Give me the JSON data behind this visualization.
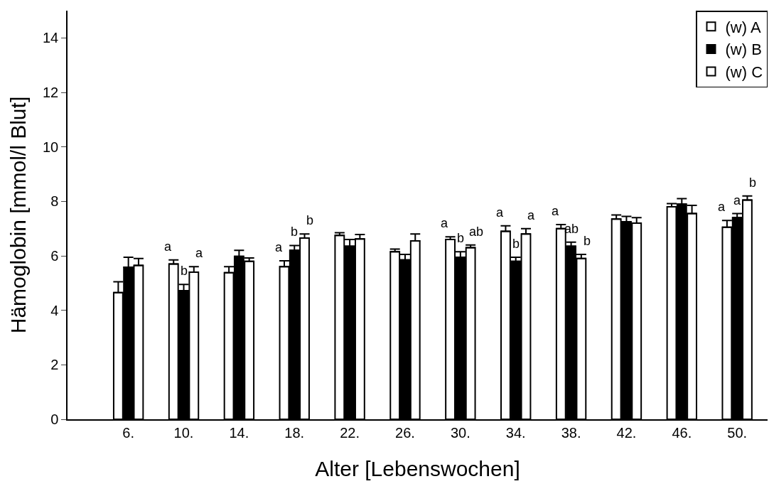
{
  "chart_data": {
    "type": "bar",
    "xlabel": "Alter [Lebenswochen]",
    "ylabel": "Hämoglobin [mmol/l Blut]",
    "categories": [
      "6.",
      "10.",
      "14.",
      "18.",
      "22.",
      "26.",
      "30.",
      "34.",
      "38.",
      "42.",
      "46.",
      "50."
    ],
    "series": [
      {
        "name": "(w) A",
        "color": "#ffffff",
        "values": [
          4.65,
          5.7,
          5.38,
          5.6,
          6.75,
          6.15,
          6.6,
          6.9,
          7.0,
          7.35,
          7.8,
          7.05
        ],
        "errors": [
          [
            4.65,
            5.05
          ],
          [
            5.7,
            5.85
          ],
          [
            5.38,
            5.6
          ],
          [
            5.6,
            5.82
          ],
          [
            6.75,
            6.85
          ],
          [
            6.15,
            6.25
          ],
          [
            6.6,
            6.7
          ],
          [
            6.9,
            7.1
          ],
          [
            7.0,
            7.15
          ],
          [
            7.35,
            7.5
          ],
          [
            7.8,
            7.92
          ],
          [
            7.05,
            7.3
          ]
        ],
        "value_labels": [
          null,
          "a",
          null,
          "a",
          null,
          null,
          "a",
          "a",
          "a",
          null,
          null,
          "a"
        ]
      },
      {
        "name": "(w) B",
        "color": "#000000",
        "values": [
          5.58,
          4.72,
          5.98,
          6.2,
          6.35,
          5.85,
          5.95,
          5.8,
          6.35,
          7.25,
          7.9,
          7.4
        ],
        "errors": [
          [
            5.58,
            5.95
          ],
          [
            4.72,
            4.95
          ],
          [
            5.98,
            6.2
          ],
          [
            6.2,
            6.38
          ],
          [
            6.35,
            6.6
          ],
          [
            5.85,
            6.05
          ],
          [
            5.95,
            6.15
          ],
          [
            5.8,
            5.95
          ],
          [
            6.35,
            6.5
          ],
          [
            7.25,
            7.45
          ],
          [
            7.9,
            8.1
          ],
          [
            7.4,
            7.55
          ]
        ],
        "value_labels": [
          null,
          "b",
          null,
          "b",
          null,
          null,
          "b",
          "b",
          "ab",
          null,
          null,
          "a"
        ]
      },
      {
        "name": "(w) C",
        "color": "#ffffff",
        "values": [
          5.65,
          5.4,
          5.8,
          6.65,
          6.62,
          6.55,
          6.3,
          6.8,
          5.9,
          7.2,
          7.55,
          8.05
        ],
        "errors": [
          [
            5.65,
            5.9
          ],
          [
            5.4,
            5.6
          ],
          [
            5.8,
            5.92
          ],
          [
            6.65,
            6.8
          ],
          [
            6.62,
            6.78
          ],
          [
            6.55,
            6.8
          ],
          [
            6.3,
            6.4
          ],
          [
            6.8,
            7.0
          ],
          [
            5.9,
            6.05
          ],
          [
            7.2,
            7.4
          ],
          [
            7.55,
            7.85
          ],
          [
            8.05,
            8.2
          ]
        ],
        "value_labels": [
          null,
          "a",
          null,
          "b",
          null,
          null,
          "ab",
          "a",
          "b",
          null,
          null,
          "b"
        ]
      }
    ],
    "ylim": [
      0,
      15
    ],
    "yticks": [
      0,
      2,
      4,
      6,
      8,
      10,
      12,
      14
    ],
    "legend": "top right"
  }
}
